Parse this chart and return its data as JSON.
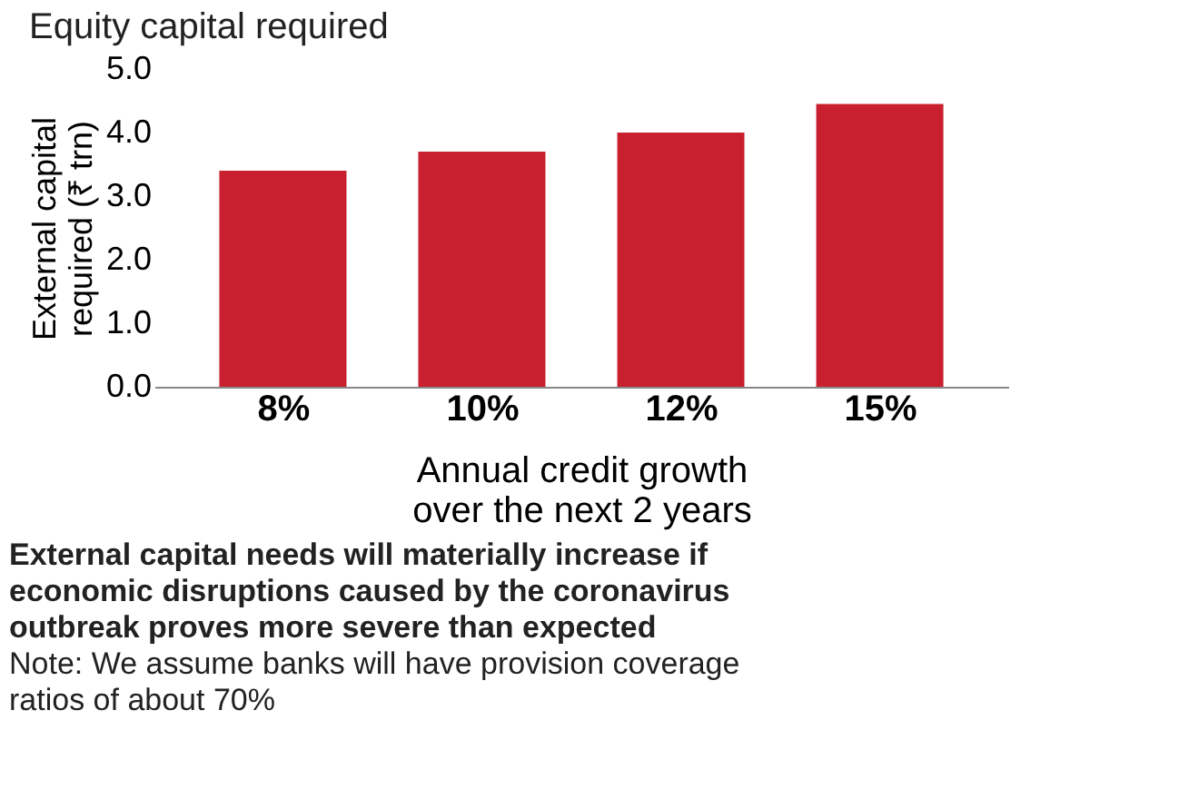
{
  "chart_data": {
    "type": "bar",
    "title": "Equity capital required",
    "subtitle": "External capital needs will materially increase if economic disruptions caused by the coronavirus outbreak proves more severe than expected",
    "categories": [
      "8%",
      "10%",
      "12%",
      "15%"
    ],
    "values": [
      3.4,
      3.7,
      4.0,
      4.45
    ],
    "color": "#c8202f",
    "xlabel": "Annual credit growth over the next 2 years",
    "ylabel": "External capital required (₹ trn)",
    "ylim": [
      0,
      5
    ],
    "yticks": [
      {
        "value": 0,
        "label": "0.0"
      },
      {
        "value": 1,
        "label": "1.0"
      },
      {
        "value": 2,
        "label": "2.0"
      },
      {
        "value": 3,
        "label": "3.0"
      },
      {
        "value": 4,
        "label": "4.0"
      },
      {
        "value": 5,
        "label": "5.0"
      }
    ],
    "grid": false,
    "annotations": [
      "Note: We assume banks will have provision coverage ratios of about 70%"
    ]
  }
}
